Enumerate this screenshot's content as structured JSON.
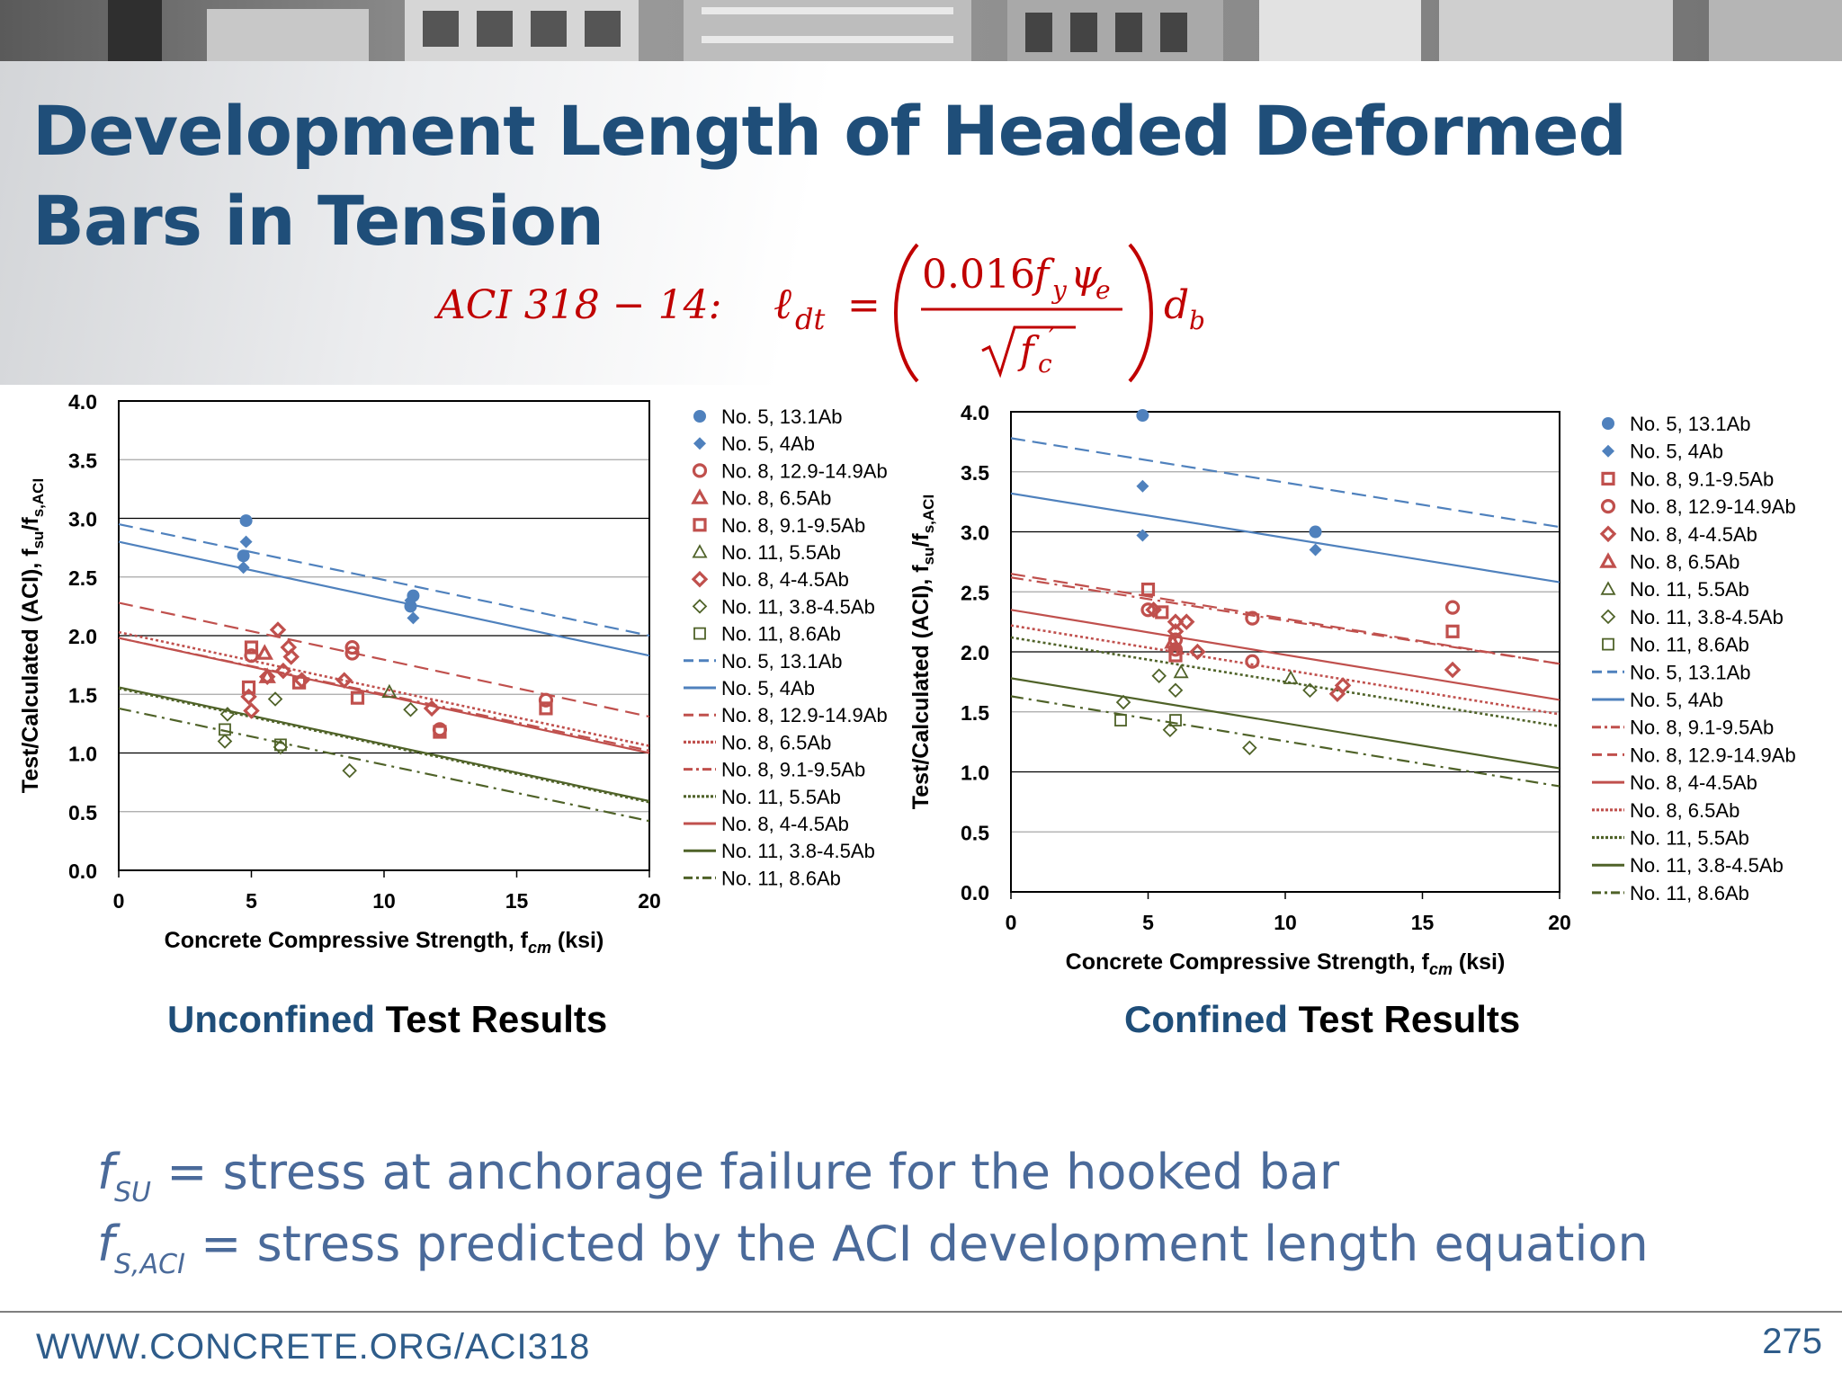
{
  "slide": {
    "title_line1": "Development Length of Headed Deformed",
    "title_line2": "Bars in Tension",
    "equation": {
      "label": "ACI 318 − 14:",
      "lhs": "ℓ",
      "lhs_sub": "dt",
      "equals": "=",
      "numerator": "0.016",
      "numerator_f": "f",
      "numerator_f_sub": "y",
      "numerator_psi": "ψ",
      "numerator_psi_sub": "e",
      "denominator": "f",
      "denominator_sub": "c",
      "denominator_sup": "′",
      "tail": "d",
      "tail_sub": "b"
    },
    "captions": {
      "left_accent": "Unconfined",
      "left_rest": " Test Results",
      "right_accent": "Confined",
      "right_rest": " Test Results"
    },
    "definitions": [
      {
        "symbol": "f",
        "sub": "SU",
        "text": " = stress at anchorage failure for the hooked bar"
      },
      {
        "symbol": "f",
        "sub": "S,ACI",
        "text": " = stress predicted by the ACI development length equation"
      }
    ],
    "footer_url": "WWW.CONCRETE.ORG/ACI318",
    "page_number": "275",
    "colors": {
      "title": "#1f4e79",
      "equation": "#c00000",
      "definition": "#4a6a9a",
      "blue": "#4f81bd",
      "red": "#c0504d",
      "green": "#4f6228"
    }
  },
  "chart_data": [
    {
      "type": "scatter",
      "caption": "Unconfined Test Results",
      "xlabel": "Concrete Compressive Strength, f",
      "xlabel_sub": "cm",
      "xlabel_tail": " (ksi)",
      "ylabel": "Test/Calculated (ACI), f",
      "ylabel_sub1": "su",
      "ylabel_mid": "/f",
      "ylabel_sub2": "s,ACI",
      "xlim": [
        0,
        20
      ],
      "ylim": [
        0,
        4
      ],
      "xticks": [
        "0",
        "5",
        "10",
        "15",
        "20"
      ],
      "yticks": [
        "0.0",
        "0.5",
        "1.0",
        "1.5",
        "2.0",
        "2.5",
        "3.0",
        "3.5",
        "4.0"
      ],
      "grid": "horizontal",
      "legend_position": "right",
      "legend": [
        {
          "label": "No. 5, 13.1Ab",
          "marker": "circle",
          "color": "#4f81bd"
        },
        {
          "label": "No. 5, 4Ab",
          "marker": "diamond",
          "color": "#4f81bd"
        },
        {
          "label": "No. 8, 12.9-14.9Ab",
          "marker": "circle-open",
          "color": "#c0504d"
        },
        {
          "label": "No. 8, 6.5Ab",
          "marker": "triangle-open",
          "color": "#c0504d"
        },
        {
          "label": "No. 8, 9.1-9.5Ab",
          "marker": "square-open",
          "color": "#c0504d"
        },
        {
          "label": "No. 11, 5.5Ab",
          "marker": "triangle-open-thin",
          "color": "#4f6228"
        },
        {
          "label": "No. 8, 4-4.5Ab",
          "marker": "diamond-open",
          "color": "#c0504d"
        },
        {
          "label": "No. 11, 3.8-4.5Ab",
          "marker": "diamond-open-thin",
          "color": "#4f6228"
        },
        {
          "label": "No. 11, 8.6Ab",
          "marker": "square-open-thin",
          "color": "#4f6228"
        },
        {
          "label": "No. 5, 13.1Ab",
          "line": "dashed",
          "color": "#4f81bd"
        },
        {
          "label": "No. 5, 4Ab",
          "line": "solid",
          "color": "#4f81bd"
        },
        {
          "label": "No. 8, 12.9-14.9Ab",
          "line": "dashed",
          "color": "#c0504d"
        },
        {
          "label": "No. 8, 6.5Ab",
          "line": "dotted",
          "color": "#c0504d"
        },
        {
          "label": "No. 8, 9.1-9.5Ab",
          "line": "dashdot",
          "color": "#c0504d"
        },
        {
          "label": "No. 11, 5.5Ab",
          "line": "dotted",
          "color": "#4f6228"
        },
        {
          "label": "No. 8, 4-4.5Ab",
          "line": "solid",
          "color": "#c0504d"
        },
        {
          "label": "No. 11, 3.8-4.5Ab",
          "line": "solid",
          "color": "#4f6228"
        },
        {
          "label": "No. 11, 8.6Ab",
          "line": "dashdot",
          "color": "#4f6228"
        }
      ],
      "series": [
        {
          "name": "No. 5, 13.1Ab",
          "marker": "circle",
          "color": "#4f81bd",
          "points": [
            [
              4.8,
              2.98
            ],
            [
              4.7,
              2.68
            ],
            [
              11.1,
              2.34
            ],
            [
              11.0,
              2.25
            ]
          ]
        },
        {
          "name": "No. 5, 4Ab",
          "marker": "diamond",
          "color": "#4f81bd",
          "points": [
            [
              4.8,
              2.8
            ],
            [
              4.7,
              2.58
            ],
            [
              11.1,
              2.15
            ],
            [
              11.0,
              2.3
            ]
          ]
        },
        {
          "name": "No. 8, 12.9-14.9Ab",
          "marker": "circle-open",
          "color": "#c0504d",
          "points": [
            [
              5.0,
              1.83
            ],
            [
              8.8,
              1.9
            ],
            [
              8.8,
              1.85
            ],
            [
              12.1,
              1.2
            ],
            [
              16.1,
              1.45
            ]
          ]
        },
        {
          "name": "No. 8, 6.5Ab",
          "marker": "triangle-open",
          "color": "#c0504d",
          "points": [
            [
              5.5,
              1.85
            ],
            [
              5.6,
              1.65
            ]
          ]
        },
        {
          "name": "No. 8, 9.1-9.5Ab",
          "marker": "square-open",
          "color": "#c0504d",
          "points": [
            [
              5.0,
              1.9
            ],
            [
              4.9,
              1.56
            ],
            [
              6.8,
              1.6
            ],
            [
              9.0,
              1.47
            ],
            [
              12.1,
              1.18
            ],
            [
              16.1,
              1.38
            ]
          ]
        },
        {
          "name": "No. 11, 5.5Ab",
          "marker": "triangle-open-thin",
          "color": "#4f6228",
          "points": [
            [
              10.2,
              1.52
            ]
          ]
        },
        {
          "name": "No. 8, 4-4.5Ab",
          "marker": "diamond-open",
          "color": "#c0504d",
          "points": [
            [
              4.9,
              1.48
            ],
            [
              5.0,
              1.36
            ],
            [
              5.6,
              1.65
            ],
            [
              6.0,
              2.05
            ],
            [
              6.4,
              1.9
            ],
            [
              6.5,
              1.82
            ],
            [
              6.2,
              1.7
            ],
            [
              6.9,
              1.62
            ],
            [
              8.5,
              1.62
            ],
            [
              11.8,
              1.38
            ]
          ]
        },
        {
          "name": "No. 11, 3.8-4.5Ab",
          "marker": "diamond-open-thin",
          "color": "#4f6228",
          "points": [
            [
              4.1,
              1.33
            ],
            [
              4.0,
              1.1
            ],
            [
              5.9,
              1.46
            ],
            [
              6.1,
              1.05
            ],
            [
              8.7,
              0.85
            ],
            [
              11.0,
              1.37
            ]
          ]
        },
        {
          "name": "No. 11, 8.6Ab",
          "marker": "square-open-thin",
          "color": "#4f6228",
          "points": [
            [
              4.0,
              1.2
            ],
            [
              6.1,
              1.07
            ]
          ]
        }
      ],
      "trendlines": [
        {
          "name": "No. 5, 13.1Ab",
          "style": "dashed",
          "color": "#4f81bd",
          "from": [
            0,
            2.95
          ],
          "to": [
            20,
            2.0
          ]
        },
        {
          "name": "No. 5, 4Ab",
          "style": "solid",
          "color": "#4f81bd",
          "from": [
            0,
            2.8
          ],
          "to": [
            20,
            1.83
          ]
        },
        {
          "name": "No. 8, 12.9-14.9Ab",
          "style": "dashed",
          "color": "#c0504d",
          "from": [
            0,
            2.28
          ],
          "to": [
            20,
            1.31
          ]
        },
        {
          "name": "No. 8, 6.5Ab",
          "style": "dotted",
          "color": "#c0504d",
          "from": [
            0,
            2.03
          ],
          "to": [
            20,
            1.06
          ]
        },
        {
          "name": "No. 8, 9.1-9.5Ab",
          "style": "dashdot",
          "color": "#c0504d",
          "from": [
            0,
            1.98
          ],
          "to": [
            20,
            1.02
          ]
        },
        {
          "name": "No. 11, 5.5Ab",
          "style": "dotted",
          "color": "#4f6228",
          "from": [
            0,
            1.55
          ],
          "to": [
            20,
            0.58
          ]
        },
        {
          "name": "No. 8, 4-4.5Ab",
          "style": "solid",
          "color": "#c0504d",
          "from": [
            0,
            1.98
          ],
          "to": [
            20,
            1.0
          ]
        },
        {
          "name": "No. 11, 3.8-4.5Ab",
          "style": "solid",
          "color": "#4f6228",
          "from": [
            0,
            1.56
          ],
          "to": [
            20,
            0.59
          ]
        },
        {
          "name": "No. 11, 8.6Ab",
          "style": "dashdot",
          "color": "#4f6228",
          "from": [
            0,
            1.38
          ],
          "to": [
            20,
            0.42
          ]
        }
      ]
    },
    {
      "type": "scatter",
      "caption": "Confined Test Results",
      "xlabel": "Concrete Compressive Strength, f",
      "xlabel_sub": "cm",
      "xlabel_tail": " (ksi)",
      "ylabel": "Test/Calculated (ACI), f",
      "ylabel_sub1": "su",
      "ylabel_mid": "/f",
      "ylabel_sub2": "s,ACI",
      "xlim": [
        0,
        20
      ],
      "ylim": [
        0,
        4
      ],
      "xticks": [
        "0",
        "5",
        "10",
        "15",
        "20"
      ],
      "yticks": [
        "0.0",
        "0.5",
        "1.0",
        "1.5",
        "2.0",
        "2.5",
        "3.0",
        "3.5",
        "4.0"
      ],
      "grid": "horizontal",
      "legend_position": "right",
      "legend": [
        {
          "label": "No. 5, 13.1Ab",
          "marker": "circle",
          "color": "#4f81bd"
        },
        {
          "label": "No. 5, 4Ab",
          "marker": "diamond",
          "color": "#4f81bd"
        },
        {
          "label": "No. 8, 9.1-9.5Ab",
          "marker": "square-open",
          "color": "#c0504d"
        },
        {
          "label": "No. 8, 12.9-14.9Ab",
          "marker": "circle-open",
          "color": "#c0504d"
        },
        {
          "label": "No. 8, 4-4.5Ab",
          "marker": "diamond-open",
          "color": "#c0504d"
        },
        {
          "label": "No. 8, 6.5Ab",
          "marker": "triangle-open",
          "color": "#c0504d"
        },
        {
          "label": "No. 11, 5.5Ab",
          "marker": "triangle-open-thin",
          "color": "#4f6228"
        },
        {
          "label": "No. 11, 3.8-4.5Ab",
          "marker": "diamond-open-thin",
          "color": "#4f6228"
        },
        {
          "label": "No. 11, 8.6Ab",
          "marker": "square-open-thin",
          "color": "#4f6228"
        },
        {
          "label": "No. 5, 13.1Ab",
          "line": "dashed",
          "color": "#4f81bd"
        },
        {
          "label": "No. 5, 4Ab",
          "line": "solid",
          "color": "#4f81bd"
        },
        {
          "label": "No. 8, 9.1-9.5Ab",
          "line": "dashdot",
          "color": "#c0504d"
        },
        {
          "label": "No. 8, 12.9-14.9Ab",
          "line": "dashed",
          "color": "#c0504d"
        },
        {
          "label": "No. 8, 4-4.5Ab",
          "line": "solid",
          "color": "#c0504d"
        },
        {
          "label": "No. 8, 6.5Ab",
          "line": "dotted",
          "color": "#c0504d"
        },
        {
          "label": "No. 11, 5.5Ab",
          "line": "dotted",
          "color": "#4f6228"
        },
        {
          "label": "No. 11, 3.8-4.5Ab",
          "line": "solid",
          "color": "#4f6228"
        },
        {
          "label": "No. 11, 8.6Ab",
          "line": "dashdot",
          "color": "#4f6228"
        }
      ],
      "series": [
        {
          "name": "No. 5, 13.1Ab",
          "marker": "circle",
          "color": "#4f81bd",
          "points": [
            [
              4.8,
              3.97
            ],
            [
              11.1,
              3.0
            ]
          ]
        },
        {
          "name": "No. 5, 4Ab",
          "marker": "diamond",
          "color": "#4f81bd",
          "points": [
            [
              4.8,
              3.38
            ],
            [
              4.8,
              2.97
            ],
            [
              11.1,
              2.85
            ]
          ]
        },
        {
          "name": "No. 8, 9.1-9.5Ab",
          "marker": "square-open",
          "color": "#c0504d",
          "points": [
            [
              5.0,
              2.52
            ],
            [
              5.5,
              2.33
            ],
            [
              6.0,
              1.97
            ],
            [
              16.1,
              2.17
            ]
          ]
        },
        {
          "name": "No. 8, 12.9-14.9Ab",
          "marker": "circle-open",
          "color": "#c0504d",
          "points": [
            [
              5.0,
              2.35
            ],
            [
              6.0,
              2.02
            ],
            [
              6.0,
              2.1
            ],
            [
              8.8,
              2.28
            ],
            [
              8.8,
              1.92
            ],
            [
              16.1,
              2.37
            ]
          ]
        },
        {
          "name": "No. 8, 4-4.5Ab",
          "marker": "diamond-open",
          "color": "#c0504d",
          "points": [
            [
              5.2,
              2.35
            ],
            [
              6.0,
              2.25
            ],
            [
              6.4,
              2.25
            ],
            [
              6.0,
              2.17
            ],
            [
              6.8,
              2.0
            ],
            [
              11.9,
              1.65
            ],
            [
              12.1,
              1.72
            ],
            [
              16.1,
              1.85
            ]
          ]
        },
        {
          "name": "No. 8, 6.5Ab",
          "marker": "triangle-open",
          "color": "#c0504d",
          "points": [
            [
              5.9,
              2.08
            ]
          ]
        },
        {
          "name": "No. 11, 5.5Ab",
          "marker": "triangle-open-thin",
          "color": "#4f6228",
          "points": [
            [
              6.2,
              1.83
            ],
            [
              10.2,
              1.78
            ]
          ]
        },
        {
          "name": "No. 11, 3.8-4.5Ab",
          "marker": "diamond-open-thin",
          "color": "#4f6228",
          "points": [
            [
              4.1,
              1.58
            ],
            [
              5.4,
              1.8
            ],
            [
              6.0,
              1.68
            ],
            [
              5.8,
              1.35
            ],
            [
              8.7,
              1.2
            ],
            [
              10.9,
              1.68
            ]
          ]
        },
        {
          "name": "No. 11, 8.6Ab",
          "marker": "square-open-thin",
          "color": "#4f6228",
          "points": [
            [
              4.0,
              1.43
            ],
            [
              6.0,
              1.43
            ]
          ]
        }
      ],
      "trendlines": [
        {
          "name": "No. 5, 13.1Ab",
          "style": "dashed",
          "color": "#4f81bd",
          "from": [
            0,
            3.78
          ],
          "to": [
            20,
            3.04
          ]
        },
        {
          "name": "No. 5, 4Ab",
          "style": "solid",
          "color": "#4f81bd",
          "from": [
            0,
            3.32
          ],
          "to": [
            20,
            2.58
          ]
        },
        {
          "name": "No. 8, 9.1-9.5Ab",
          "style": "dashdot",
          "color": "#c0504d",
          "from": [
            0,
            2.62
          ],
          "to": [
            20,
            1.9
          ]
        },
        {
          "name": "No. 8, 12.9-14.9Ab",
          "style": "dashed",
          "color": "#c0504d",
          "from": [
            0,
            2.65
          ],
          "to": [
            20,
            1.9
          ]
        },
        {
          "name": "No. 8, 4-4.5Ab",
          "style": "solid",
          "color": "#c0504d",
          "from": [
            0,
            2.35
          ],
          "to": [
            20,
            1.6
          ]
        },
        {
          "name": "No. 8, 6.5Ab",
          "style": "dotted",
          "color": "#c0504d",
          "from": [
            0,
            2.22
          ],
          "to": [
            20,
            1.48
          ]
        },
        {
          "name": "No. 11, 5.5Ab",
          "style": "dotted",
          "color": "#4f6228",
          "from": [
            0,
            2.12
          ],
          "to": [
            20,
            1.38
          ]
        },
        {
          "name": "No. 11, 3.8-4.5Ab",
          "style": "solid",
          "color": "#4f6228",
          "from": [
            0,
            1.78
          ],
          "to": [
            20,
            1.03
          ]
        },
        {
          "name": "No. 11, 8.6Ab",
          "style": "dashdot",
          "color": "#4f6228",
          "from": [
            0,
            1.63
          ],
          "to": [
            20,
            0.88
          ]
        }
      ]
    }
  ]
}
